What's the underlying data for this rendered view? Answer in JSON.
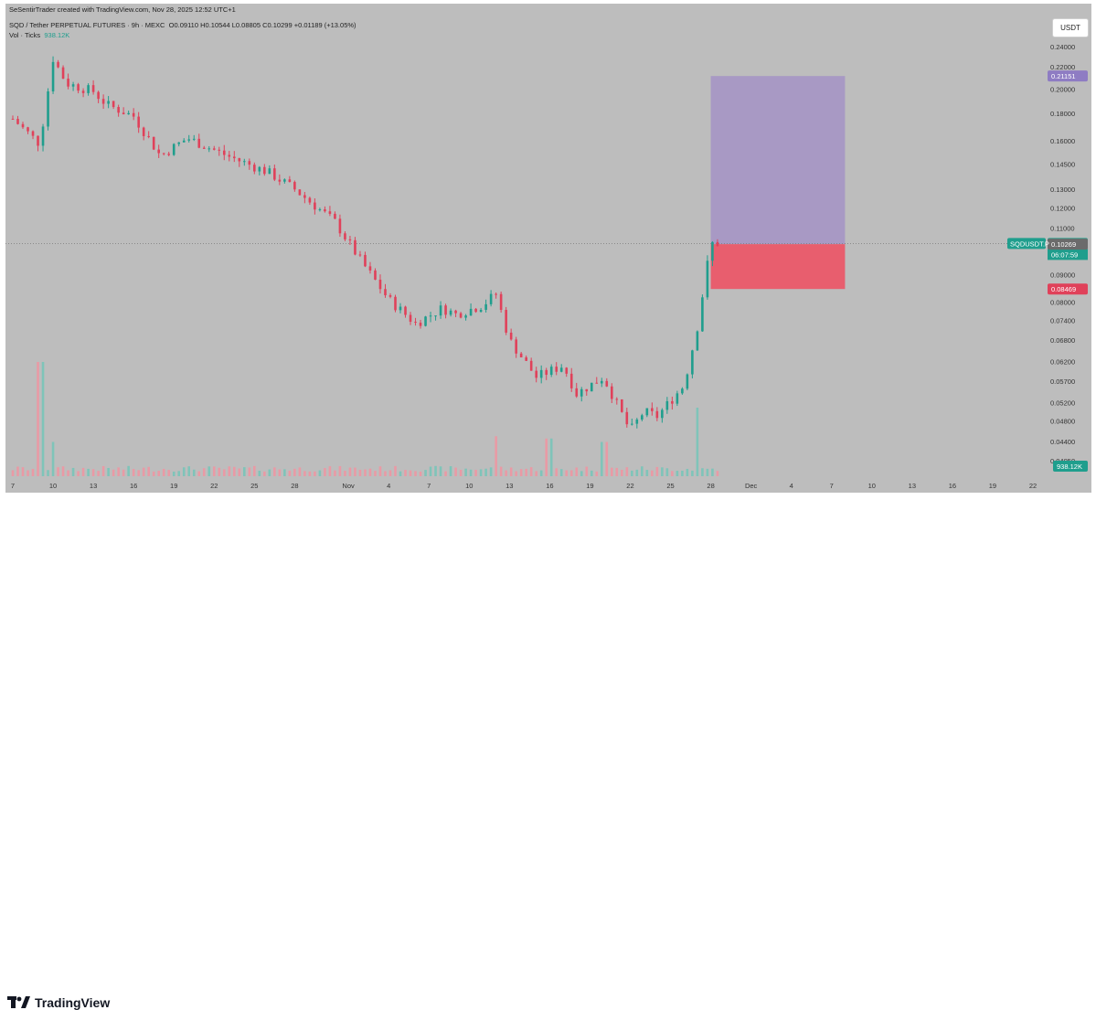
{
  "header": {
    "created_by": "SeSentirTrader created with TradingView.com, Nov 28, 2025 12:52 UTC+1",
    "symbol_line": "SQD / Tether PERPETUAL FUTURES · 9h · MEXC",
    "ohlc": "O0.09110 H0.10544 L0.08805 C0.10299 +0.01189 (+13.05%)",
    "vol_label": "Vol · Ticks",
    "vol_value": "938.12K"
  },
  "currency_button": "USDT",
  "footer": {
    "brand": "TradingView"
  },
  "colors": {
    "up": "#1f9e8d",
    "down": "#e0415a",
    "profit_zone": "#a899c4",
    "loss_zone": "#e85e6e",
    "background": "#bdbdbd"
  },
  "chart_data": {
    "type": "candlestick",
    "title": "SQD / Tether PERPETUAL FUTURES · 9h · MEXC",
    "y_scale": "log",
    "y_ticks": [
      "0.24000",
      "0.22000",
      "0.20000",
      "0.18000",
      "0.16000",
      "0.14500",
      "0.13000",
      "0.12000",
      "0.11000",
      "0.10000",
      "0.09000",
      "0.08000",
      "0.07400",
      "0.06800",
      "0.06200",
      "0.05700",
      "0.05200",
      "0.04800",
      "0.04400",
      "0.04050"
    ],
    "x_ticks": [
      "7",
      "10",
      "13",
      "16",
      "19",
      "22",
      "25",
      "28",
      "Nov",
      "4",
      "7",
      "10",
      "13",
      "16",
      "19",
      "22",
      "25",
      "28",
      "Dec",
      "4",
      "7",
      "10",
      "13",
      "16",
      "19",
      "22"
    ],
    "x_range": [
      "2025-10-07",
      "2025-12-22"
    ],
    "price_tags": [
      {
        "label": "0.21151",
        "value": 0.21151,
        "color": "#8e7cc3"
      },
      {
        "label": "0.10299",
        "value": 0.10299,
        "color": "#1f9e8d",
        "symbol": "SQDUSDT.P",
        "countdown": "06:07:59"
      },
      {
        "label": "0.10269",
        "value": 0.10269,
        "color": "#6b6b6b"
      },
      {
        "label": "0.08469",
        "value": 0.08469,
        "color": "#e0415a"
      }
    ],
    "volume_tag": "938.12K",
    "position": {
      "entry": 0.10269,
      "target": 0.21151,
      "stop": 0.08469,
      "start": "2025-11-28",
      "end": "2025-12-08"
    },
    "anchors": [
      {
        "d": "2025-10-07",
        "p": 0.176
      },
      {
        "d": "2025-10-09",
        "p": 0.158
      },
      {
        "d": "2025-10-10",
        "p": 0.228
      },
      {
        "d": "2025-10-11",
        "p": 0.205
      },
      {
        "d": "2025-10-13",
        "p": 0.198
      },
      {
        "d": "2025-10-14",
        "p": 0.187
      },
      {
        "d": "2025-10-16",
        "p": 0.178
      },
      {
        "d": "2025-10-18",
        "p": 0.15
      },
      {
        "d": "2025-10-20",
        "p": 0.162
      },
      {
        "d": "2025-10-23",
        "p": 0.15
      },
      {
        "d": "2025-10-26",
        "p": 0.14
      },
      {
        "d": "2025-10-28",
        "p": 0.13
      },
      {
        "d": "2025-10-31",
        "p": 0.113
      },
      {
        "d": "2025-11-02",
        "p": 0.095
      },
      {
        "d": "2025-11-04",
        "p": 0.081
      },
      {
        "d": "2025-11-06",
        "p": 0.073
      },
      {
        "d": "2025-11-08",
        "p": 0.078
      },
      {
        "d": "2025-11-09",
        "p": 0.076
      },
      {
        "d": "2025-11-11",
        "p": 0.079
      },
      {
        "d": "2025-11-12",
        "p": 0.083
      },
      {
        "d": "2025-11-13",
        "p": 0.068
      },
      {
        "d": "2025-11-15",
        "p": 0.058
      },
      {
        "d": "2025-11-17",
        "p": 0.061
      },
      {
        "d": "2025-11-18",
        "p": 0.054
      },
      {
        "d": "2025-11-20",
        "p": 0.058
      },
      {
        "d": "2025-11-22",
        "p": 0.046
      },
      {
        "d": "2025-11-23",
        "p": 0.05
      },
      {
        "d": "2025-11-24",
        "p": 0.049
      },
      {
        "d": "2025-11-26",
        "p": 0.056
      },
      {
        "d": "2025-11-27",
        "p": 0.072
      },
      {
        "d": "2025-11-28",
        "p": 0.103
      }
    ],
    "volume_spikes": [
      {
        "d": "2025-10-09",
        "v": 1.0
      },
      {
        "d": "2025-10-10",
        "v": 0.3
      },
      {
        "d": "2025-11-12",
        "v": 0.35
      },
      {
        "d": "2025-11-16",
        "v": 0.33
      },
      {
        "d": "2025-11-20",
        "v": 0.3
      },
      {
        "d": "2025-11-27",
        "v": 0.6
      }
    ]
  }
}
